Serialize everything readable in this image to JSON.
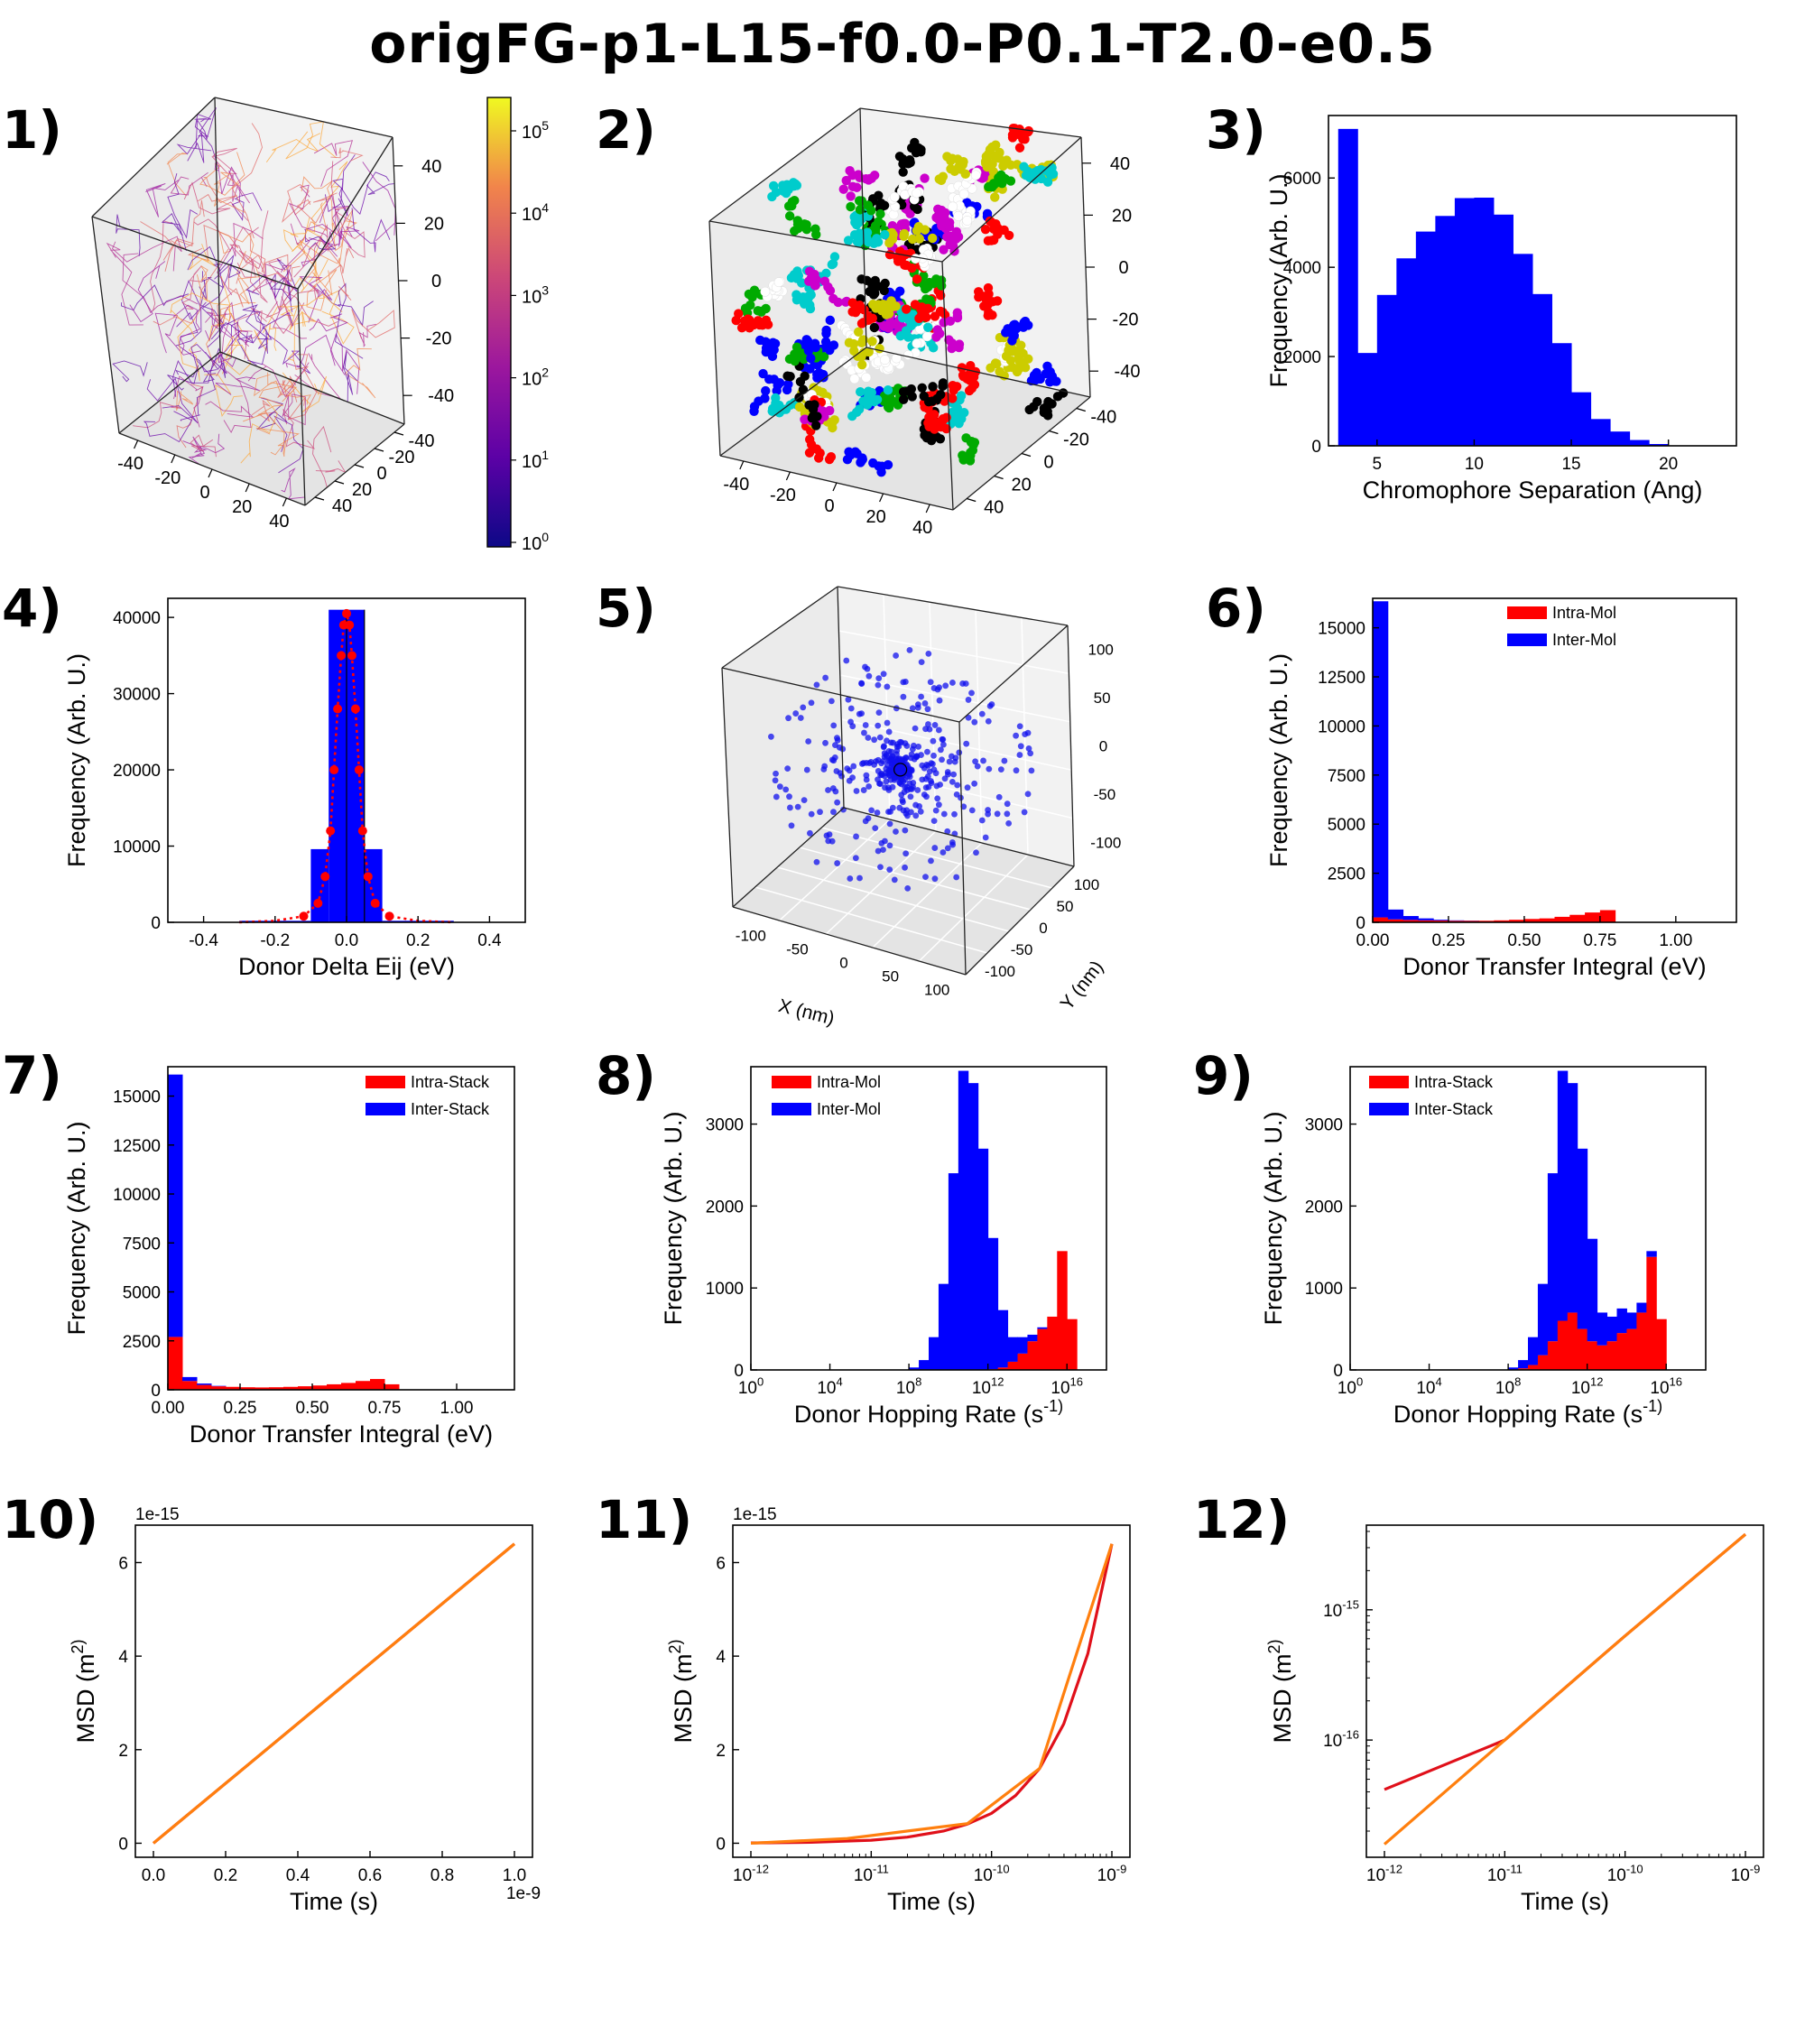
{
  "title": "origFG-p1-L15-f0.0-P0.1-T2.0-e0.5",
  "panel_labels": [
    "1)",
    "2)",
    "3)",
    "4)",
    "5)",
    "6)",
    "7)",
    "8)",
    "9)",
    "10)",
    "11)",
    "12)"
  ],
  "colors": {
    "blue": "#0000ff",
    "red": "#ff0000",
    "orange": "#ff7f0e",
    "dark_red": "#e0101a",
    "plasma_low": "#0d0887",
    "plasma_high": "#f0f921"
  },
  "chart_data": [
    {
      "id": "panel-1",
      "type": "scatter3d",
      "description_words": "3D network of chromophore connections colored by log scale",
      "x_ticks": [
        "-40",
        "-20",
        "0",
        "20",
        "40"
      ],
      "y_ticks": [
        "-40",
        "-20",
        "0",
        "20",
        "40"
      ],
      "z_ticks": [
        "40",
        "20",
        "0",
        "-20",
        "-40"
      ],
      "colorbar": {
        "scale": "log",
        "ticks": [
          "10^5",
          "10^4",
          "10^3",
          "10^2",
          "10^1",
          "10^0"
        ]
      }
    },
    {
      "id": "panel-2",
      "type": "scatter3d",
      "x_ticks": [
        "-40",
        "-20",
        "0",
        "20",
        "40"
      ],
      "y_ticks": [
        "-40",
        "-20",
        "0",
        "20",
        "40"
      ],
      "z_ticks": [
        "40",
        "20",
        "0",
        "-20",
        "-40"
      ],
      "point_colors": [
        "#0000ff",
        "#ff0000",
        "#00aa00",
        "#00cccc",
        "#cc00cc",
        "#cccc00",
        "#000000",
        "#ffffff"
      ]
    },
    {
      "id": "panel-3",
      "type": "bar",
      "xlabel": "Chromophore Separation (Ang)",
      "ylabel": "Frequency (Arb. U.)",
      "xlim": [
        2.5,
        23.5
      ],
      "ylim": [
        0,
        7400
      ],
      "x_ticks": [
        5,
        10,
        15,
        20
      ],
      "y_ticks": [
        0,
        2000,
        4000,
        6000
      ],
      "bin_width": 1,
      "bins": [
        3,
        4,
        5,
        6,
        7,
        8,
        9,
        10,
        11,
        12,
        13,
        14,
        15,
        16,
        17,
        18,
        19
      ],
      "values": [
        7100,
        2080,
        3380,
        4200,
        4800,
        5150,
        5550,
        5560,
        5180,
        4300,
        3400,
        2300,
        1200,
        600,
        320,
        130,
        40
      ]
    },
    {
      "id": "panel-4",
      "type": "bar",
      "xlabel": "Donor Delta Eij (eV)",
      "ylabel": "Frequency (Arb. U.)",
      "xlim": [
        -0.5,
        0.5
      ],
      "ylim": [
        0,
        42500
      ],
      "x_ticks": [
        -0.4,
        -0.2,
        0.0,
        0.2,
        0.4
      ],
      "y_ticks": [
        0,
        10000,
        20000,
        30000,
        40000
      ],
      "bars": [
        {
          "x0": -0.3,
          "x1": -0.1,
          "value": 200
        },
        {
          "x0": -0.1,
          "x1": -0.05,
          "value": 9600
        },
        {
          "x0": -0.05,
          "x1": 0.0,
          "value": 41000
        },
        {
          "x0": 0.0,
          "x1": 0.05,
          "value": 41000
        },
        {
          "x0": 0.05,
          "x1": 0.1,
          "value": 9600
        },
        {
          "x0": 0.1,
          "x1": 0.3,
          "value": 200
        }
      ],
      "fit_points_x": [
        -0.3,
        -0.2,
        -0.12,
        -0.08,
        -0.06,
        -0.045,
        -0.035,
        -0.025,
        -0.015,
        -0.008,
        0.0,
        0.008,
        0.015,
        0.025,
        0.035,
        0.045,
        0.06,
        0.08,
        0.12,
        0.2,
        0.3
      ],
      "fit_points_y": [
        0,
        200,
        800,
        2500,
        6000,
        12000,
        20000,
        28000,
        35000,
        39000,
        40500,
        39000,
        35000,
        28000,
        20000,
        12000,
        6000,
        2500,
        800,
        200,
        0
      ]
    },
    {
      "id": "panel-5",
      "type": "scatter3d",
      "xlabel": "X (nm)",
      "ylabel": "Y (nm)",
      "x_ticks": [
        "-100",
        "-50",
        "0",
        "50",
        "100"
      ],
      "y_ticks": [
        "100",
        "50",
        "0",
        "-50",
        "-100"
      ],
      "z_ticks": [
        "100",
        "50",
        "0",
        "-50",
        "-100"
      ]
    },
    {
      "id": "panel-6",
      "type": "bar",
      "xlabel": "Donor Transfer Integral (eV)",
      "ylabel": "Frequency (Arb. U.)",
      "xlim": [
        0,
        1.2
      ],
      "ylim": [
        0,
        16500
      ],
      "x_ticks": [
        "0.00",
        "0.25",
        "0.50",
        "0.75",
        "1.00"
      ],
      "y_ticks": [
        0,
        2500,
        5000,
        7500,
        10000,
        12500,
        15000
      ],
      "bin_width": 0.05,
      "series": [
        {
          "name": "Intra-Mol",
          "color": "#ff0000",
          "values": [
            250,
            150,
            120,
            100,
            90,
            80,
            80,
            80,
            100,
            130,
            170,
            200,
            280,
            380,
            500,
            620,
            0
          ]
        },
        {
          "name": "Inter-Mol",
          "color": "#0000ff",
          "values": [
            16100,
            500,
            200,
            100,
            40,
            20,
            10,
            0,
            0,
            0,
            0,
            0,
            0,
            0,
            0,
            0,
            0
          ]
        }
      ]
    },
    {
      "id": "panel-7",
      "type": "bar",
      "xlabel": "Donor Transfer Integral (eV)",
      "ylabel": "Frequency (Arb. U.)",
      "xlim": [
        0,
        1.2
      ],
      "ylim": [
        0,
        16500
      ],
      "x_ticks": [
        "0.00",
        "0.25",
        "0.50",
        "0.75",
        "1.00"
      ],
      "y_ticks": [
        0,
        2500,
        5000,
        7500,
        10000,
        12500,
        15000
      ],
      "bin_width": 0.05,
      "series": [
        {
          "name": "Intra-Stack",
          "color": "#ff0000",
          "values": [
            2700,
            450,
            250,
            180,
            150,
            130,
            120,
            130,
            150,
            180,
            220,
            280,
            350,
            450,
            550,
            280,
            0
          ]
        },
        {
          "name": "Inter-Stack",
          "color": "#0000ff",
          "values": [
            13400,
            200,
            70,
            20,
            0,
            0,
            0,
            0,
            0,
            0,
            0,
            0,
            0,
            0,
            0,
            0,
            0
          ]
        }
      ]
    },
    {
      "id": "panel-8",
      "type": "bar",
      "xlabel": "Donor Hopping Rate (s^-1)",
      "ylabel": "Frequency (Arb. U.)",
      "x_scale": "log10",
      "xlim": [
        0,
        18
      ],
      "ylim": [
        0,
        3700
      ],
      "x_ticks": [
        "10^0",
        "10^4",
        "10^8",
        "10^12",
        "10^16"
      ],
      "y_ticks": [
        0,
        1000,
        2000,
        3000
      ],
      "log10_bin_edges_start": 8,
      "log10_bin_width": 0.5,
      "series": [
        {
          "name": "Intra-Mol",
          "color": "#ff0000",
          "values": [
            0,
            0,
            0,
            0,
            0,
            0,
            0,
            0,
            10,
            30,
            100,
            200,
            350,
            500,
            650,
            1450,
            620,
            0
          ]
        },
        {
          "name": "Inter-Mol",
          "color": "#0000ff",
          "values": [
            30,
            120,
            400,
            1050,
            2400,
            3650,
            3500,
            2700,
            1600,
            700,
            300,
            200,
            80,
            20,
            0,
            0,
            0,
            0
          ]
        }
      ]
    },
    {
      "id": "panel-9",
      "type": "bar",
      "xlabel": "Donor Hopping Rate (s^-1)",
      "ylabel": "Frequency (Arb. U.)",
      "x_scale": "log10",
      "xlim": [
        0,
        18
      ],
      "ylim": [
        0,
        3700
      ],
      "x_ticks": [
        "10^0",
        "10^4",
        "10^8",
        "10^12",
        "10^16"
      ],
      "y_ticks": [
        0,
        1000,
        2000,
        3000
      ],
      "log10_bin_edges_start": 8,
      "log10_bin_width": 0.5,
      "series": [
        {
          "name": "Intra-Stack",
          "color": "#ff0000",
          "values": [
            0,
            20,
            60,
            180,
            350,
            600,
            700,
            500,
            350,
            300,
            350,
            450,
            500,
            700,
            1380,
            620,
            0,
            0
          ]
        },
        {
          "name": "Inter-Stack",
          "color": "#0000ff",
          "values": [
            30,
            100,
            340,
            870,
            2050,
            3050,
            2800,
            2200,
            1250,
            400,
            300,
            300,
            200,
            120,
            70,
            0,
            0,
            0
          ]
        }
      ]
    },
    {
      "id": "panel-10",
      "type": "line",
      "xlabel": "Time (s)",
      "ylabel": "MSD (m^2)",
      "x_offset_text": "1e-9",
      "y_offset_text": "1e-15",
      "xlim": [
        -0.05,
        1.05
      ],
      "ylim": [
        -0.3,
        6.8
      ],
      "x_ticks": [
        "0.0",
        "0.2",
        "0.4",
        "0.6",
        "0.8",
        "1.0"
      ],
      "y_ticks": [
        0,
        2,
        4,
        6
      ],
      "series": [
        {
          "color": "#e0101a",
          "x": [
            0.0,
            1.0
          ],
          "y": [
            0.0,
            6.4
          ]
        },
        {
          "color": "#ff7f0e",
          "x": [
            0.0,
            1.0
          ],
          "y": [
            0.0,
            6.4
          ]
        }
      ]
    },
    {
      "id": "panel-11",
      "type": "line",
      "xlabel": "Time (s)",
      "ylabel": "MSD (m^2)",
      "x_scale": "log10",
      "y_offset_text": "1e-15",
      "xlim": [
        -12.15,
        -8.85
      ],
      "ylim": [
        -0.3,
        6.8
      ],
      "x_ticks": [
        "10^-12",
        "10^-11",
        "10^-10",
        "10^-9"
      ],
      "y_ticks": [
        0,
        2,
        4,
        6
      ],
      "series": [
        {
          "color": "#e0101a",
          "x": [
            -12,
            -11.5,
            -11,
            -10.7,
            -10.4,
            -10.2,
            -10.0,
            -9.8,
            -9.6,
            -9.4,
            -9.2,
            -9.0
          ],
          "y": [
            0.006,
            0.02,
            0.064,
            0.13,
            0.26,
            0.41,
            0.64,
            1.02,
            1.6,
            2.55,
            4.05,
            6.4
          ]
        },
        {
          "color": "#ff7f0e",
          "x": [
            -12,
            -11.2,
            -10.2,
            -9.6,
            -9.0
          ],
          "y": [
            0.0,
            0.1,
            0.42,
            1.6,
            6.4
          ]
        }
      ]
    },
    {
      "id": "panel-12",
      "type": "line",
      "xlabel": "Time (s)",
      "ylabel": "MSD (m^2)",
      "x_scale": "log10",
      "y_scale": "log10",
      "xlim": [
        -12.15,
        -8.85
      ],
      "ylim": [
        -16.9,
        -14.35
      ],
      "x_ticks": [
        "10^-12",
        "10^-11",
        "10^-10",
        "10^-9"
      ],
      "y_ticks": [
        "10^-16",
        "10^-15"
      ],
      "series": [
        {
          "color": "#e0101a",
          "x": [
            -12,
            -11,
            -10,
            -9
          ],
          "y": [
            -16.38,
            -16.0,
            -15.2,
            -14.42
          ]
        },
        {
          "color": "#ff7f0e",
          "x": [
            -12,
            -11,
            -10,
            -9
          ],
          "y": [
            -16.8,
            -16.0,
            -15.2,
            -14.42
          ]
        }
      ]
    }
  ]
}
